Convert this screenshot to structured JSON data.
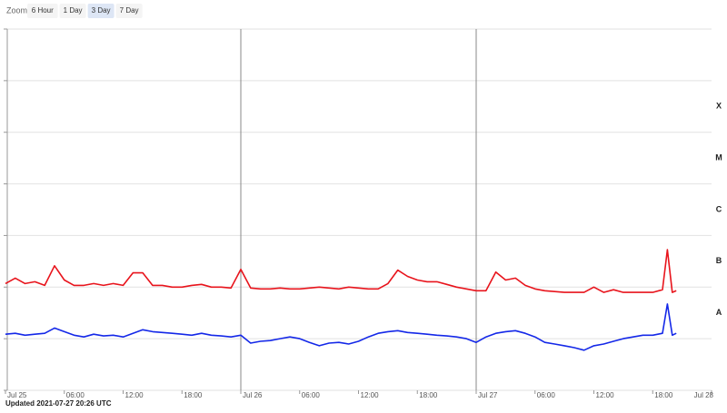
{
  "zoom": {
    "label": "Zoom",
    "buttons": [
      "6 Hour",
      "1 Day",
      "3 Day",
      "7 Day"
    ],
    "selected": 2
  },
  "updated": "Updated 2021-07-27 20:26 UTC",
  "chart_data": {
    "type": "line",
    "log_scale": true,
    "grid": true,
    "xlim": [
      0,
      72
    ],
    "xticks": [
      {
        "value": 0,
        "label": "Jul 25"
      },
      {
        "value": 6,
        "label": "06:00"
      },
      {
        "value": 12,
        "label": "12:00"
      },
      {
        "value": 18,
        "label": "18:00"
      },
      {
        "value": 24,
        "label": "Jul 26"
      },
      {
        "value": 30,
        "label": "06:00"
      },
      {
        "value": 36,
        "label": "12:00"
      },
      {
        "value": 42,
        "label": "18:00"
      },
      {
        "value": 48,
        "label": "Jul 27"
      },
      {
        "value": 54,
        "label": "06:00"
      },
      {
        "value": 60,
        "label": "12:00"
      },
      {
        "value": 66,
        "label": "18:00"
      },
      {
        "value": 72,
        "label": "Jul 28"
      }
    ],
    "ylim": [
      1e-09,
      0.01
    ],
    "yticks": [
      1e-09,
      1e-08,
      1e-07,
      1e-06,
      1e-05,
      0.0001,
      0.001,
      0.01
    ],
    "classes": [
      {
        "value": 1e-08,
        "label": "A"
      },
      {
        "value": 1e-07,
        "label": "B"
      },
      {
        "value": 1e-06,
        "label": "C"
      },
      {
        "value": 1e-05,
        "label": "M"
      },
      {
        "value": 0.0001,
        "label": "X"
      }
    ],
    "x": [
      0,
      1,
      2,
      3,
      4,
      5,
      6,
      7,
      8,
      9,
      10,
      11,
      12,
      13,
      14,
      15,
      16,
      17,
      18,
      19,
      20,
      21,
      22,
      23,
      24,
      25,
      26,
      27,
      28,
      29,
      30,
      31,
      32,
      33,
      34,
      35,
      36,
      37,
      38,
      39,
      40,
      41,
      42,
      43,
      44,
      45,
      46,
      47,
      48,
      49,
      50,
      51,
      52,
      53,
      54,
      55,
      56,
      57,
      58,
      59,
      60,
      61,
      62,
      63,
      64,
      65,
      66,
      67,
      67.5,
      68,
      68.4
    ],
    "series": [
      {
        "color": "#e8141c",
        "values": [
          1.17e-07,
          1.49e-07,
          1.17e-07,
          1.27e-07,
          1.08e-07,
          2.59e-07,
          1.37e-07,
          1.08e-07,
          1.08e-07,
          1.17e-07,
          1.08e-07,
          1.17e-07,
          1.08e-07,
          1.89e-07,
          1.89e-07,
          1.08e-07,
          1.08e-07,
          1e-07,
          1e-07,
          1.08e-07,
          1.13e-07,
          1e-07,
          1e-07,
          9.6e-08,
          2.21e-07,
          9.6e-08,
          9.2e-08,
          9.2e-08,
          9.6e-08,
          9.2e-08,
          9.2e-08,
          9.6e-08,
          1e-07,
          9.6e-08,
          9.2e-08,
          1e-07,
          9.6e-08,
          9.2e-08,
          9.2e-08,
          1.17e-07,
          2.13e-07,
          1.61e-07,
          1.37e-07,
          1.27e-07,
          1.27e-07,
          1.13e-07,
          1e-07,
          9.2e-08,
          8.5e-08,
          8.5e-08,
          1.96e-07,
          1.37e-07,
          1.49e-07,
          1.08e-07,
          9.2e-08,
          8.5e-08,
          8.2e-08,
          7.9e-08,
          7.9e-08,
          7.9e-08,
          1e-07,
          7.9e-08,
          8.9e-08,
          7.9e-08,
          7.9e-08,
          7.9e-08,
          7.9e-08,
          8.9e-08,
          5.3e-07,
          7.9e-08,
          8.5e-08
        ]
      },
      {
        "color": "#1428e8",
        "values": [
          1.22e-08,
          1.27e-08,
          1.17e-08,
          1.22e-08,
          1.27e-08,
          1.61e-08,
          1.37e-08,
          1.17e-08,
          1.08e-08,
          1.22e-08,
          1.13e-08,
          1.17e-08,
          1.08e-08,
          1.27e-08,
          1.49e-08,
          1.37e-08,
          1.32e-08,
          1.27e-08,
          1.22e-08,
          1.17e-08,
          1.27e-08,
          1.17e-08,
          1.13e-08,
          1.08e-08,
          1.17e-08,
          8.2e-09,
          8.9e-09,
          9.2e-09,
          1e-08,
          1.08e-08,
          1e-08,
          8.5e-09,
          7.3e-09,
          8.2e-09,
          8.5e-09,
          7.9e-09,
          8.9e-09,
          1.08e-08,
          1.27e-08,
          1.37e-08,
          1.43e-08,
          1.32e-08,
          1.27e-08,
          1.22e-08,
          1.17e-08,
          1.13e-08,
          1.08e-08,
          1e-08,
          8.5e-09,
          1.08e-08,
          1.27e-08,
          1.37e-08,
          1.43e-08,
          1.27e-08,
          1.08e-08,
          8.5e-09,
          7.9e-09,
          7.3e-09,
          6.7e-09,
          6e-09,
          7.3e-09,
          7.9e-09,
          8.9e-09,
          1e-08,
          1.08e-08,
          1.17e-08,
          1.17e-08,
          1.27e-08,
          4.7e-08,
          1.17e-08,
          1.27e-08
        ]
      }
    ]
  }
}
